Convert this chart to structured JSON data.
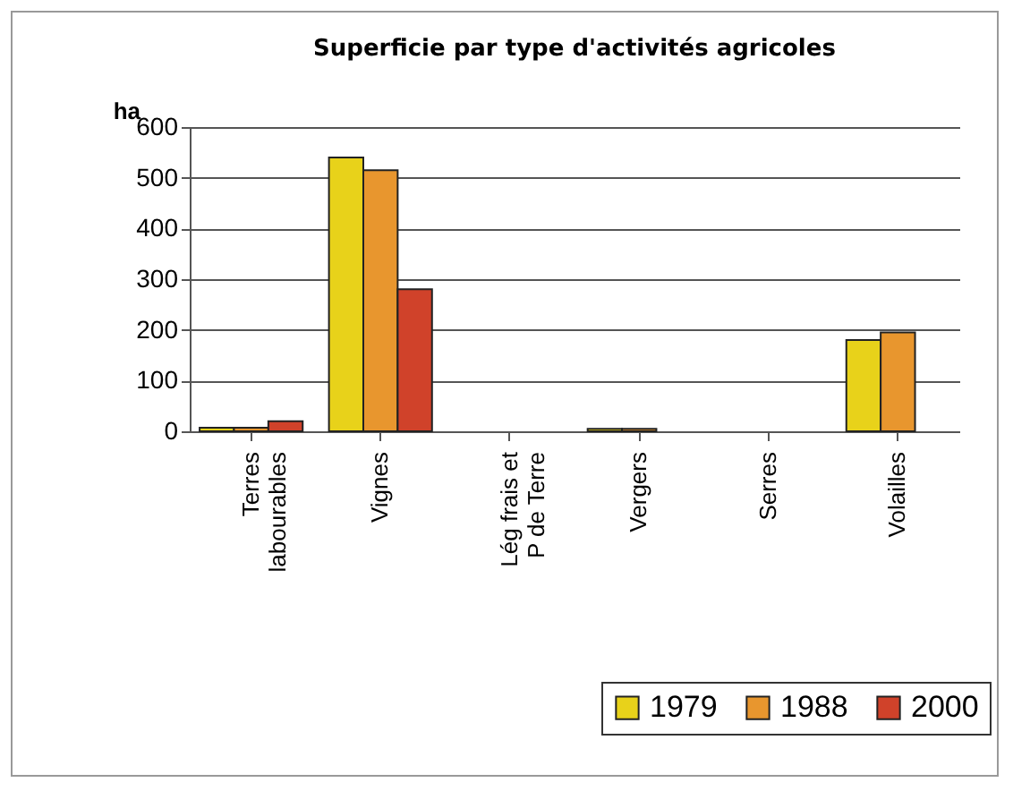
{
  "chart_data": {
    "type": "bar",
    "title": "Superficie par type d'activités agricoles",
    "ylabel": "ha",
    "categories": [
      "Terres\nlabourables",
      "Vignes",
      "Lég frais et\nP de Terre",
      "Vergers",
      "Serres",
      "Volailles"
    ],
    "series": [
      {
        "name": "1979",
        "color": "#e8d21a",
        "values": [
          7,
          540,
          null,
          5,
          null,
          180
        ]
      },
      {
        "name": "1988",
        "color": "#e8962e",
        "values": [
          7,
          515,
          null,
          5,
          null,
          195
        ]
      },
      {
        "name": "2000",
        "color": "#d0422a",
        "values": [
          20,
          280,
          null,
          null,
          null,
          null
        ]
      }
    ],
    "ylim": [
      0,
      600
    ],
    "yticks": [
      0,
      100,
      200,
      300,
      400,
      500,
      600
    ],
    "grid": "y",
    "legend": "bottom right"
  }
}
